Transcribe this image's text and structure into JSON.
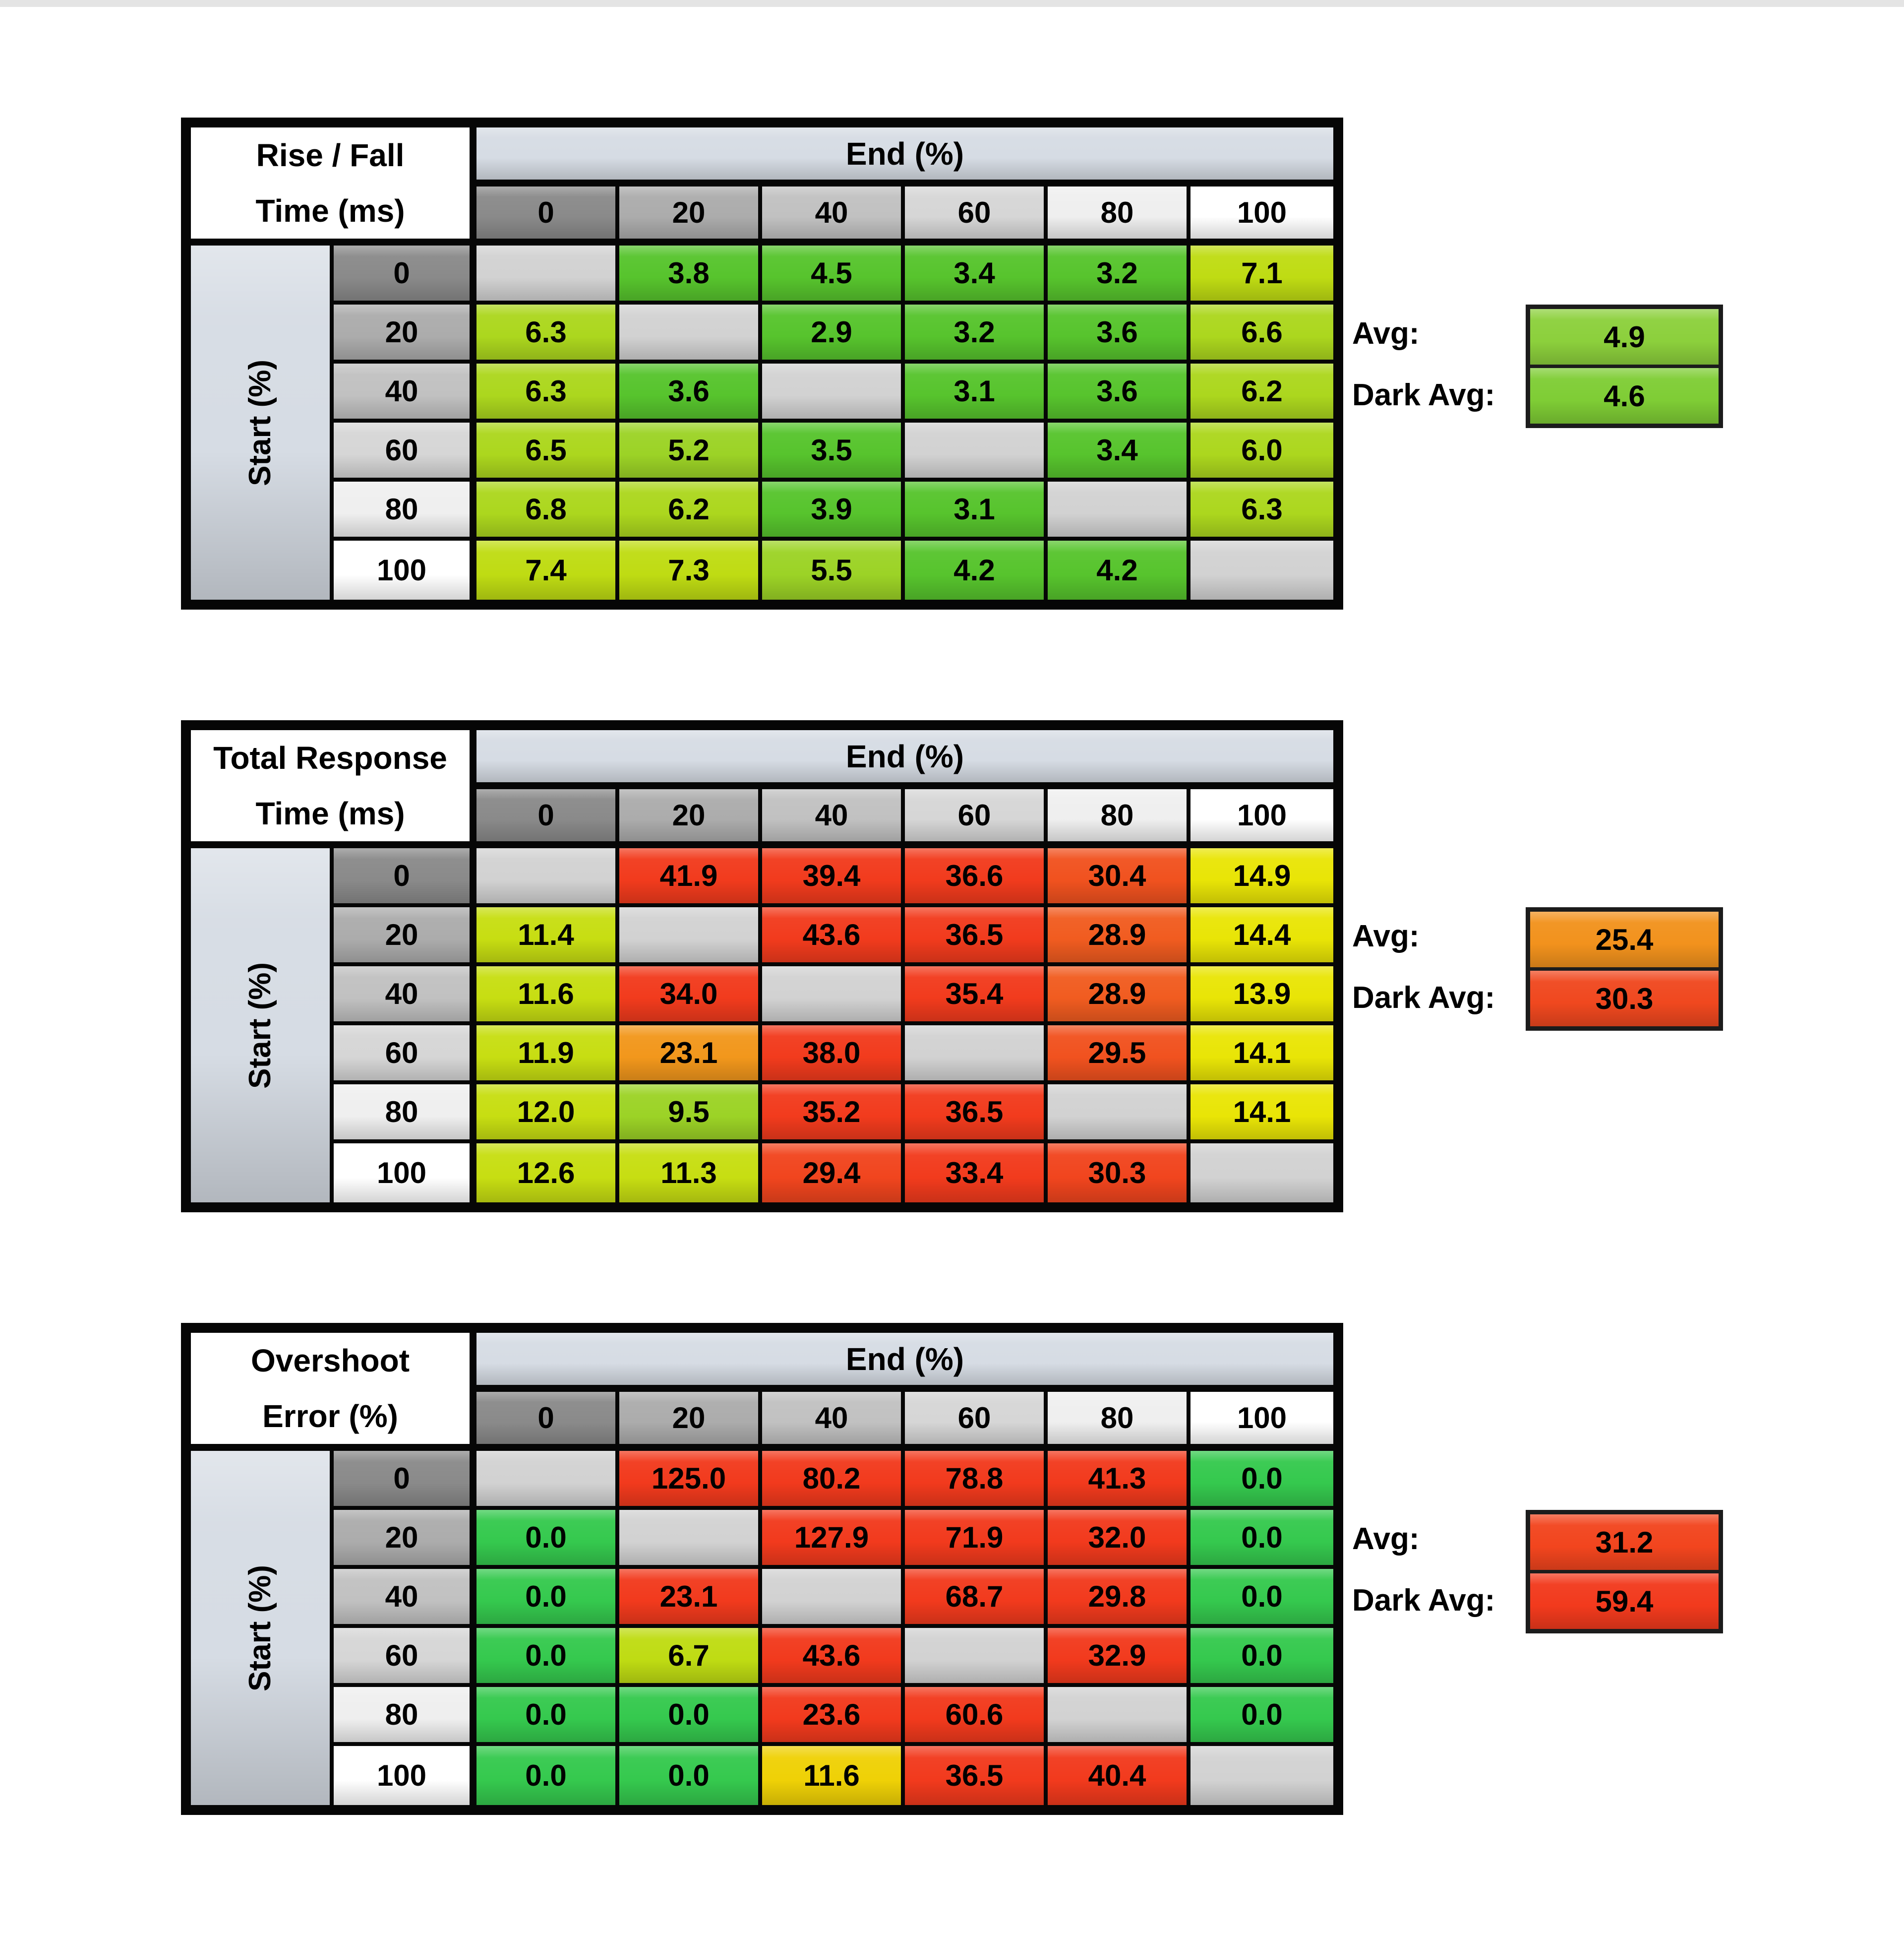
{
  "page": {
    "top_strip_color": "#e4e4e4",
    "background": "#ffffff"
  },
  "colors": {
    "axis_band": "#D6DCE4",
    "diagonal_blank": "#D2D2D2",
    "grid_line": "#060606",
    "header_shades": [
      "#8A8A8A",
      "#ACACAC",
      "#C1C1C1",
      "#D6D6D6",
      "#EFEFEF",
      "#FFFFFF"
    ]
  },
  "axis": {
    "col_label": "End (%)",
    "row_label": "Start (%)",
    "ticks": [
      "0",
      "20",
      "40",
      "60",
      "80",
      "100"
    ]
  },
  "avg_labels": {
    "avg": "Avg:",
    "dark_avg": "Dark Avg:"
  },
  "tables": [
    {
      "title_line1": "Rise / Fall",
      "title_line2": "Time (ms)",
      "avg": {
        "value": "4.9",
        "color": "#8CD03C"
      },
      "dark_avg": {
        "value": "4.6",
        "color": "#7FCD35"
      },
      "rows": [
        [
          null,
          {
            "v": "3.8",
            "c": "#57C42D"
          },
          {
            "v": "4.5",
            "c": "#57C42D"
          },
          {
            "v": "3.4",
            "c": "#57C42D"
          },
          {
            "v": "3.2",
            "c": "#57C42D"
          },
          {
            "v": "7.1",
            "c": "#BFDC13"
          }
        ],
        [
          {
            "v": "6.3",
            "c": "#ACD71E"
          },
          null,
          {
            "v": "2.9",
            "c": "#57C42D"
          },
          {
            "v": "3.2",
            "c": "#57C42D"
          },
          {
            "v": "3.6",
            "c": "#57C42D"
          },
          {
            "v": "6.6",
            "c": "#ACD71E"
          }
        ],
        [
          {
            "v": "6.3",
            "c": "#ACD71E"
          },
          {
            "v": "3.6",
            "c": "#57C42D"
          },
          null,
          {
            "v": "3.1",
            "c": "#57C42D"
          },
          {
            "v": "3.6",
            "c": "#57C42D"
          },
          {
            "v": "6.2",
            "c": "#ACD71E"
          }
        ],
        [
          {
            "v": "6.5",
            "c": "#ACD71E"
          },
          {
            "v": "5.2",
            "c": "#9CD326"
          },
          {
            "v": "3.5",
            "c": "#57C42D"
          },
          null,
          {
            "v": "3.4",
            "c": "#57C42D"
          },
          {
            "v": "6.0",
            "c": "#ACD71E"
          }
        ],
        [
          {
            "v": "6.8",
            "c": "#ACD71E"
          },
          {
            "v": "6.2",
            "c": "#ACD71E"
          },
          {
            "v": "3.9",
            "c": "#57C42D"
          },
          {
            "v": "3.1",
            "c": "#57C42D"
          },
          null,
          {
            "v": "6.3",
            "c": "#ACD71E"
          }
        ],
        [
          {
            "v": "7.4",
            "c": "#BFDC13"
          },
          {
            "v": "7.3",
            "c": "#BFDC13"
          },
          {
            "v": "5.5",
            "c": "#9CD326"
          },
          {
            "v": "4.2",
            "c": "#57C42D"
          },
          {
            "v": "4.2",
            "c": "#57C42D"
          },
          null
        ]
      ]
    },
    {
      "title_line1": "Total Response",
      "title_line2": "Time (ms)",
      "avg": {
        "value": "25.4",
        "color": "#F2921D"
      },
      "dark_avg": {
        "value": "30.3",
        "color": "#F0481F"
      },
      "rows": [
        [
          null,
          {
            "v": "41.9",
            "c": "#F23B1D"
          },
          {
            "v": "39.4",
            "c": "#F23B1D"
          },
          {
            "v": "36.6",
            "c": "#F23B1D"
          },
          {
            "v": "30.4",
            "c": "#F1521F"
          },
          {
            "v": "14.9",
            "c": "#E9E506"
          }
        ],
        [
          {
            "v": "11.4",
            "c": "#C7DE12"
          },
          null,
          {
            "v": "43.6",
            "c": "#F23B1D"
          },
          {
            "v": "36.5",
            "c": "#F23B1D"
          },
          {
            "v": "28.9",
            "c": "#F15C20"
          },
          {
            "v": "14.4",
            "c": "#E9E506"
          }
        ],
        [
          {
            "v": "11.6",
            "c": "#C7DE12"
          },
          {
            "v": "34.0",
            "c": "#F23B1D"
          },
          null,
          {
            "v": "35.4",
            "c": "#F23B1D"
          },
          {
            "v": "28.9",
            "c": "#F15C20"
          },
          {
            "v": "13.9",
            "c": "#E9E506"
          }
        ],
        [
          {
            "v": "11.9",
            "c": "#C7DE12"
          },
          {
            "v": "23.1",
            "c": "#F2971C"
          },
          {
            "v": "38.0",
            "c": "#F23B1D"
          },
          null,
          {
            "v": "29.5",
            "c": "#F1521F"
          },
          {
            "v": "14.1",
            "c": "#E9E506"
          }
        ],
        [
          {
            "v": "12.0",
            "c": "#C7DE12"
          },
          {
            "v": "9.5",
            "c": "#9CD326"
          },
          {
            "v": "35.2",
            "c": "#F23B1D"
          },
          {
            "v": "36.5",
            "c": "#F23B1D"
          },
          null,
          {
            "v": "14.1",
            "c": "#E9E506"
          }
        ],
        [
          {
            "v": "12.6",
            "c": "#C7DE12"
          },
          {
            "v": "11.3",
            "c": "#C7DE12"
          },
          {
            "v": "29.4",
            "c": "#F1451E"
          },
          {
            "v": "33.4",
            "c": "#F23B1D"
          },
          {
            "v": "30.3",
            "c": "#F1451E"
          },
          null
        ]
      ]
    },
    {
      "title_line1": "Overshoot",
      "title_line2": "Error (%)",
      "avg": {
        "value": "31.2",
        "color": "#F2451E"
      },
      "dark_avg": {
        "value": "59.4",
        "color": "#F23A1D"
      },
      "rows": [
        [
          null,
          {
            "v": "125.0",
            "c": "#F23A1D"
          },
          {
            "v": "80.2",
            "c": "#F23A1D"
          },
          {
            "v": "78.8",
            "c": "#F23A1D"
          },
          {
            "v": "41.3",
            "c": "#F23A1D"
          },
          {
            "v": "0.0",
            "c": "#35C94E"
          }
        ],
        [
          {
            "v": "0.0",
            "c": "#35C94E"
          },
          null,
          {
            "v": "127.9",
            "c": "#F23A1D"
          },
          {
            "v": "71.9",
            "c": "#F23A1D"
          },
          {
            "v": "32.0",
            "c": "#F23A1D"
          },
          {
            "v": "0.0",
            "c": "#35C94E"
          }
        ],
        [
          {
            "v": "0.0",
            "c": "#35C94E"
          },
          {
            "v": "23.1",
            "c": "#F23A1D"
          },
          null,
          {
            "v": "68.7",
            "c": "#F23A1D"
          },
          {
            "v": "29.8",
            "c": "#F23A1D"
          },
          {
            "v": "0.0",
            "c": "#35C94E"
          }
        ],
        [
          {
            "v": "0.0",
            "c": "#35C94E"
          },
          {
            "v": "6.7",
            "c": "#BFDC13"
          },
          {
            "v": "43.6",
            "c": "#F23A1D"
          },
          null,
          {
            "v": "32.9",
            "c": "#F23A1D"
          },
          {
            "v": "0.0",
            "c": "#35C94E"
          }
        ],
        [
          {
            "v": "0.0",
            "c": "#35C94E"
          },
          {
            "v": "0.0",
            "c": "#35C94E"
          },
          {
            "v": "23.6",
            "c": "#F23A1D"
          },
          {
            "v": "60.6",
            "c": "#F23A1D"
          },
          null,
          {
            "v": "0.0",
            "c": "#35C94E"
          }
        ],
        [
          {
            "v": "0.0",
            "c": "#35C94E"
          },
          {
            "v": "0.0",
            "c": "#35C94E"
          },
          {
            "v": "11.6",
            "c": "#EFD106"
          },
          {
            "v": "36.5",
            "c": "#F23A1D"
          },
          {
            "v": "40.4",
            "c": "#F23A1D"
          },
          null
        ]
      ]
    }
  ],
  "chart_data": [
    {
      "type": "heatmap",
      "title": "Rise / Fall Time (ms)",
      "xlabel": "End (%)",
      "ylabel": "Start (%)",
      "x": [
        0,
        20,
        40,
        60,
        80,
        100
      ],
      "y": [
        0,
        20,
        40,
        60,
        80,
        100
      ],
      "values": [
        [
          null,
          3.8,
          4.5,
          3.4,
          3.2,
          7.1
        ],
        [
          6.3,
          null,
          2.9,
          3.2,
          3.6,
          6.6
        ],
        [
          6.3,
          3.6,
          null,
          3.1,
          3.6,
          6.2
        ],
        [
          6.5,
          5.2,
          3.5,
          null,
          3.4,
          6.0
        ],
        [
          6.8,
          6.2,
          3.9,
          3.1,
          null,
          6.3
        ],
        [
          7.4,
          7.3,
          5.5,
          4.2,
          4.2,
          null
        ]
      ],
      "avg": 4.9,
      "dark_avg": 4.6
    },
    {
      "type": "heatmap",
      "title": "Total Response Time (ms)",
      "xlabel": "End (%)",
      "ylabel": "Start (%)",
      "x": [
        0,
        20,
        40,
        60,
        80,
        100
      ],
      "y": [
        0,
        20,
        40,
        60,
        80,
        100
      ],
      "values": [
        [
          null,
          41.9,
          39.4,
          36.6,
          30.4,
          14.9
        ],
        [
          11.4,
          null,
          43.6,
          36.5,
          28.9,
          14.4
        ],
        [
          11.6,
          34.0,
          null,
          35.4,
          28.9,
          13.9
        ],
        [
          11.9,
          23.1,
          38.0,
          null,
          29.5,
          14.1
        ],
        [
          12.0,
          9.5,
          35.2,
          36.5,
          null,
          14.1
        ],
        [
          12.6,
          11.3,
          29.4,
          33.4,
          30.3,
          null
        ]
      ],
      "avg": 25.4,
      "dark_avg": 30.3
    },
    {
      "type": "heatmap",
      "title": "Overshoot Error (%)",
      "xlabel": "End (%)",
      "ylabel": "Start (%)",
      "x": [
        0,
        20,
        40,
        60,
        80,
        100
      ],
      "y": [
        0,
        20,
        40,
        60,
        80,
        100
      ],
      "values": [
        [
          null,
          125.0,
          80.2,
          78.8,
          41.3,
          0.0
        ],
        [
          0.0,
          null,
          127.9,
          71.9,
          32.0,
          0.0
        ],
        [
          0.0,
          23.1,
          null,
          68.7,
          29.8,
          0.0
        ],
        [
          0.0,
          6.7,
          43.6,
          null,
          32.9,
          0.0
        ],
        [
          0.0,
          0.0,
          23.6,
          60.6,
          null,
          0.0
        ],
        [
          0.0,
          0.0,
          11.6,
          36.5,
          40.4,
          null
        ]
      ],
      "avg": 31.2,
      "dark_avg": 59.4
    }
  ]
}
